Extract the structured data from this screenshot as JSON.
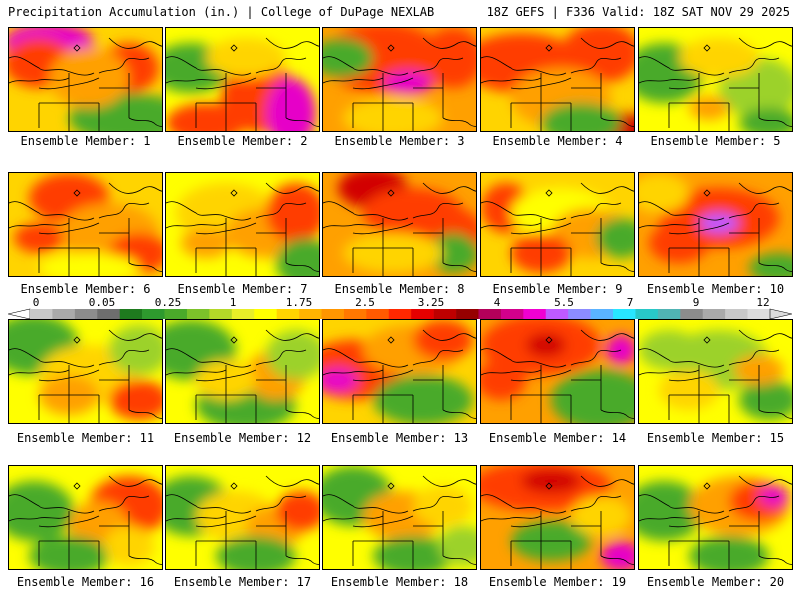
{
  "header": {
    "title": "Precipitation Accumulation (in.) | College of DuPage NEXLAB",
    "run_info": "18Z GEFS | F336 Valid: 18Z SAT NOV 29 2025"
  },
  "colorbar": {
    "labels": [
      "0",
      "0.05",
      "0.25",
      "1",
      "1.75",
      "2.5",
      "3.25",
      "4",
      "5.5",
      "7",
      "9",
      "12"
    ],
    "colors": [
      "#c8c8c8",
      "#aaaaaa",
      "#8c8c8c",
      "#6e6e6e",
      "#1e7a1e",
      "#2e9a2e",
      "#4aaa2a",
      "#7cc22a",
      "#b4d828",
      "#e8ee28",
      "#ffff00",
      "#ffd400",
      "#ffb400",
      "#ff9600",
      "#ff7800",
      "#ff5a00",
      "#ff2800",
      "#e60000",
      "#be0000",
      "#960000",
      "#b4005a",
      "#d2008c",
      "#f000d2",
      "#be5aff",
      "#8c8cff",
      "#5ab4ff",
      "#28e6ff",
      "#28c8c8",
      "#50b4b4",
      "#8c8c8c",
      "#aaaaaa",
      "#c8c8c8",
      "#dcdcdc"
    ]
  },
  "members": [
    {
      "label": "Ensemble Member: 1"
    },
    {
      "label": "Ensemble Member: 2"
    },
    {
      "label": "Ensemble Member: 3"
    },
    {
      "label": "Ensemble Member: 4"
    },
    {
      "label": "Ensemble Member: 5"
    },
    {
      "label": "Ensemble Member: 6"
    },
    {
      "label": "Ensemble Member: 7"
    },
    {
      "label": "Ensemble Member: 8"
    },
    {
      "label": "Ensemble Member: 9"
    },
    {
      "label": "Ensemble Member: 10"
    },
    {
      "label": "Ensemble Member: 11"
    },
    {
      "label": "Ensemble Member: 12"
    },
    {
      "label": "Ensemble Member: 13"
    },
    {
      "label": "Ensemble Member: 14"
    },
    {
      "label": "Ensemble Member: 15"
    },
    {
      "label": "Ensemble Member: 16"
    },
    {
      "label": "Ensemble Member: 17"
    },
    {
      "label": "Ensemble Member: 18"
    },
    {
      "label": "Ensemble Member: 19"
    },
    {
      "label": "Ensemble Member: 20"
    }
  ],
  "palette": {
    "green": "#4aaa2a",
    "lightgreen": "#9cd22a",
    "yellow": "#ffff00",
    "gold": "#ffd400",
    "orange": "#ffa000",
    "red": "#ff3c00",
    "darkred": "#d20000",
    "magenta": "#e600c8",
    "purple": "#be5aff"
  }
}
